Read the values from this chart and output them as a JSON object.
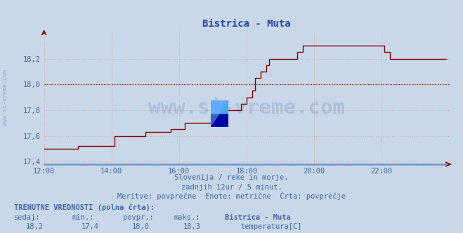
{
  "title": "Bistrica - Muta",
  "bg_color": "#c8d8e8",
  "plot_bg_color": "#c8d8e8",
  "line_color": "#880000",
  "avg_line_color": "#cc0000",
  "avg_value": 18.0,
  "grid_color": "#ddaaaa",
  "axis_color": "#7799cc",
  "text_color": "#4466aa",
  "title_color": "#2244aa",
  "tick_color": "#4466aa",
  "xmin": 0,
  "xmax": 144,
  "ymin": 17.38,
  "ymax": 18.42,
  "yticks": [
    17.4,
    17.6,
    17.8,
    18.0,
    18.2
  ],
  "xtick_positions": [
    0,
    24,
    48,
    72,
    96,
    120
  ],
  "xtick_labels": [
    "12:00",
    "14:00",
    "16:00",
    "18:00",
    "20:00",
    "22:00"
  ],
  "subtitle1": "Slovenija / reke in morje.",
  "subtitle2": "zadnjih 12ur / 5 minut.",
  "subtitle3": "Meritve: povprečne  Enote: metrične  Črta: povprečje",
  "footer_bold": "TRENUTNE VREDNOSTI (polna črta):",
  "footer_cols": [
    "sedaj:",
    "min.:",
    "povpr.:",
    "maks.:",
    "Bistrica - Muta"
  ],
  "footer_vals": [
    "18,2",
    "17,4",
    "18,0",
    "18,3",
    "temperatura[C]"
  ],
  "legend_color": "#cc0000",
  "watermark": "www.si-vreme.com",
  "watermark_color": "#3355aa",
  "watermark_alpha": 0.18,
  "side_label": "www.si-vreme.com",
  "side_label_color": "#7799cc",
  "temperature_data": [
    17.5,
    17.5,
    17.5,
    17.5,
    17.5,
    17.5,
    17.5,
    17.5,
    17.5,
    17.5,
    17.5,
    17.5,
    17.52,
    17.52,
    17.52,
    17.52,
    17.52,
    17.52,
    17.52,
    17.52,
    17.52,
    17.52,
    17.52,
    17.52,
    17.52,
    17.6,
    17.6,
    17.6,
    17.6,
    17.6,
    17.6,
    17.6,
    17.6,
    17.6,
    17.6,
    17.6,
    17.63,
    17.63,
    17.63,
    17.63,
    17.63,
    17.63,
    17.63,
    17.63,
    17.63,
    17.65,
    17.65,
    17.65,
    17.65,
    17.65,
    17.7,
    17.7,
    17.7,
    17.7,
    17.7,
    17.7,
    17.7,
    17.7,
    17.7,
    17.7,
    17.75,
    17.75,
    17.75,
    17.75,
    17.75,
    17.8,
    17.8,
    17.8,
    17.8,
    17.8,
    17.85,
    17.85,
    17.9,
    17.9,
    17.95,
    18.05,
    18.05,
    18.1,
    18.1,
    18.15,
    18.2,
    18.2,
    18.2,
    18.2,
    18.2,
    18.2,
    18.2,
    18.2,
    18.2,
    18.2,
    18.25,
    18.25,
    18.3,
    18.3,
    18.3,
    18.3,
    18.3,
    18.3,
    18.3,
    18.3,
    18.3,
    18.3,
    18.3,
    18.3,
    18.3,
    18.3,
    18.3,
    18.3,
    18.3,
    18.3,
    18.3,
    18.3,
    18.3,
    18.3,
    18.3,
    18.3,
    18.3,
    18.3,
    18.3,
    18.3,
    18.3,
    18.25,
    18.25,
    18.2,
    18.2,
    18.2,
    18.2,
    18.2,
    18.2,
    18.2,
    18.2,
    18.2,
    18.2,
    18.2,
    18.2,
    18.2,
    18.2,
    18.2,
    18.2,
    18.2,
    18.2,
    18.2,
    18.2,
    18.2
  ]
}
